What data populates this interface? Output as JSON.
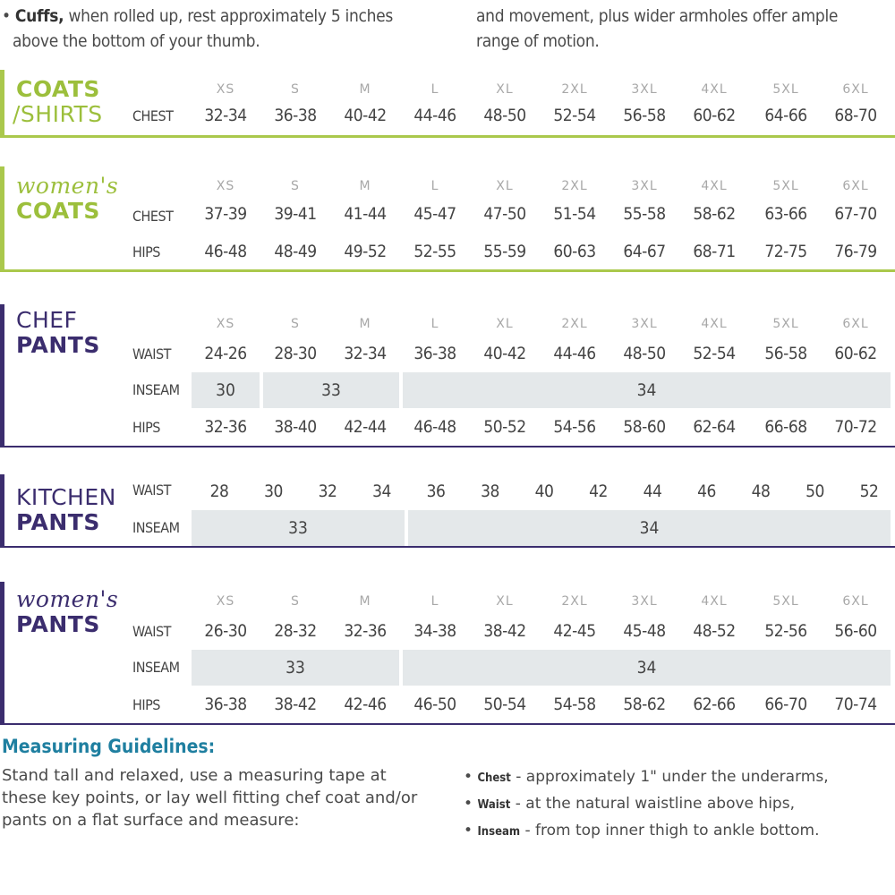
{
  "top_notes": {
    "left_line1_bold": "Cuffs,",
    "left_line1_rest": " when rolled up, rest approximately 5 inches",
    "left_line2": "above the bottom of your thumb.",
    "right_line1": "and movement, plus wider armholes offer ample",
    "right_line2": "range of motion."
  },
  "size_labels": [
    "XS",
    "S",
    "M",
    "L",
    "XL",
    "2XL",
    "3XL",
    "4XL",
    "5XL",
    "6XL"
  ],
  "coats_shirts": {
    "title_line1": "COATS",
    "title_line2": "/SHIRTS",
    "rows": [
      {
        "label": "CHEST",
        "values": [
          "32-34",
          "36-38",
          "40-42",
          "44-46",
          "48-50",
          "52-54",
          "56-58",
          "60-62",
          "64-66",
          "68-70"
        ]
      }
    ]
  },
  "womens_coats": {
    "title_line1": "women's",
    "title_line2": "COATS",
    "rows": [
      {
        "label": "CHEST",
        "values": [
          "37-39",
          "39-41",
          "41-44",
          "45-47",
          "47-50",
          "51-54",
          "55-58",
          "58-62",
          "63-66",
          "67-70"
        ]
      },
      {
        "label": "HIPS",
        "values": [
          "46-48",
          "48-49",
          "49-52",
          "52-55",
          "55-59",
          "60-63",
          "64-67",
          "68-71",
          "72-75",
          "76-79"
        ]
      }
    ]
  },
  "chef_pants": {
    "title_line1": "CHEF",
    "title_line2": "PANTS",
    "waist": {
      "label": "WAIST",
      "values": [
        "24-26",
        "28-30",
        "32-34",
        "36-38",
        "40-42",
        "44-46",
        "48-50",
        "52-54",
        "56-58",
        "60-62"
      ]
    },
    "inseam": {
      "label": "INSEAM",
      "groups": [
        "30",
        "33",
        "34"
      ]
    },
    "hips": {
      "label": "HIPS",
      "values": [
        "32-36",
        "38-40",
        "42-44",
        "46-48",
        "50-52",
        "54-56",
        "58-60",
        "62-64",
        "66-68",
        "70-72"
      ]
    }
  },
  "kitchen_pants": {
    "title_line1": "KITCHEN",
    "title_line2": "PANTS",
    "waist": {
      "label": "WAIST",
      "values": [
        "28",
        "30",
        "32",
        "34",
        "36",
        "38",
        "40",
        "42",
        "44",
        "46",
        "48",
        "50",
        "52"
      ]
    },
    "inseam": {
      "label": "INSEAM",
      "groups": [
        "33",
        "34"
      ]
    }
  },
  "womens_pants": {
    "title_line1": "women's",
    "title_line2": "PANTS",
    "waist": {
      "label": "WAIST",
      "values": [
        "26-30",
        "28-32",
        "32-36",
        "34-38",
        "38-42",
        "42-45",
        "45-48",
        "48-52",
        "52-56",
        "56-60"
      ]
    },
    "inseam": {
      "label": "INSEAM",
      "groups": [
        "33",
        "34"
      ]
    },
    "hips": {
      "label": "HIPS",
      "values": [
        "36-38",
        "38-42",
        "42-46",
        "46-50",
        "50-54",
        "54-58",
        "58-62",
        "62-66",
        "66-70",
        "70-74"
      ]
    }
  },
  "guidelines": {
    "heading": "Measuring Guidelines:",
    "text": "Stand tall and relaxed, use a measuring tape at these key points, or lay well fitting chef coat and/or pants on a flat surface and measure:",
    "bullets": [
      {
        "key": "Chest",
        "text": " - approximately 1\" under the underarms,"
      },
      {
        "key": "Waist",
        "text": " - at the natural waistline above hips,"
      },
      {
        "key": "Inseam",
        "text": " - from top inner thigh to ankle bottom."
      }
    ]
  },
  "colors": {
    "green": "#aac84c",
    "purple": "#3b2d6e",
    "band": "#e4e8ea",
    "heading_blue": "#1f7fa0"
  }
}
